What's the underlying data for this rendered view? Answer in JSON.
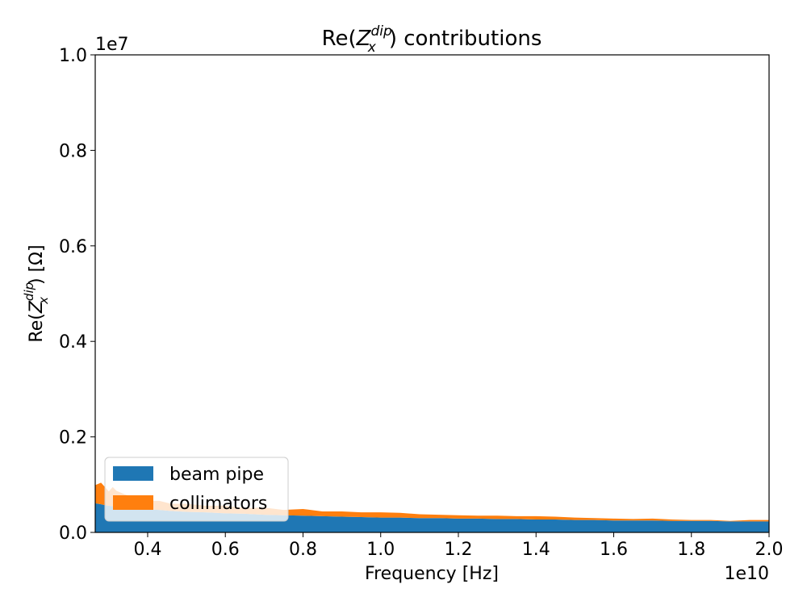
{
  "chart_data": {
    "type": "area",
    "stacked": true,
    "title": "Re(Z_x^dip) contributions",
    "title_parts": {
      "pre": "Re(",
      "var": "Z",
      "sub": "x",
      "sup": "dip",
      "post": ") contributions"
    },
    "xlabel": "Frequency [Hz]",
    "ylabel": "Re(Z_x^dip) [Ω]",
    "ylabel_parts": {
      "pre": "Re(",
      "var": "Z",
      "sub": "x",
      "sup": "dip",
      "post": ") [Ω]"
    },
    "x_offset_label": "1e10",
    "y_offset_label": "1e7",
    "xlim": [
      0.265,
      2.0
    ],
    "ylim": [
      0,
      1.0
    ],
    "x_ticks": [
      0.4,
      0.6,
      0.8,
      1.0,
      1.2,
      1.4,
      1.6,
      1.8,
      2.0
    ],
    "x_tick_labels": [
      "0.4",
      "0.6",
      "0.8",
      "1.0",
      "1.2",
      "1.4",
      "1.6",
      "1.8",
      "2.0"
    ],
    "y_ticks": [
      0.0,
      0.2,
      0.4,
      0.6,
      0.8,
      1.0
    ],
    "y_tick_labels": [
      "0.0",
      "0.2",
      "0.4",
      "0.6",
      "0.8",
      "1.0"
    ],
    "legend_position": "bottom-left",
    "grid": false,
    "x": [
      0.265,
      0.28,
      0.29,
      0.3,
      0.31,
      0.32,
      0.34,
      0.37,
      0.4,
      0.43,
      0.46,
      0.5,
      0.55,
      0.6,
      0.65,
      0.7,
      0.75,
      0.8,
      0.85,
      0.9,
      0.95,
      1.0,
      1.05,
      1.1,
      1.15,
      1.2,
      1.25,
      1.3,
      1.35,
      1.4,
      1.45,
      1.5,
      1.55,
      1.6,
      1.65,
      1.7,
      1.75,
      1.8,
      1.85,
      1.9,
      1.95,
      2.0
    ],
    "series": [
      {
        "name": "beam pipe",
        "color": "#1f77b4",
        "values": [
          0.061,
          0.059,
          0.057,
          0.056,
          0.055,
          0.054,
          0.052,
          0.05,
          0.048,
          0.047,
          0.045,
          0.043,
          0.042,
          0.04,
          0.039,
          0.037,
          0.036,
          0.035,
          0.034,
          0.033,
          0.032,
          0.031,
          0.031,
          0.03,
          0.03,
          0.029,
          0.029,
          0.028,
          0.028,
          0.027,
          0.027,
          0.026,
          0.026,
          0.025,
          0.025,
          0.025,
          0.024,
          0.024,
          0.024,
          0.023,
          0.023,
          0.023
        ]
      },
      {
        "name": "collimators",
        "color": "#ff7f0e",
        "values": [
          0.038,
          0.045,
          0.038,
          0.03,
          0.04,
          0.033,
          0.028,
          0.022,
          0.018,
          0.019,
          0.015,
          0.017,
          0.014,
          0.016,
          0.012,
          0.015,
          0.011,
          0.014,
          0.01,
          0.011,
          0.01,
          0.011,
          0.01,
          0.008,
          0.007,
          0.007,
          0.006,
          0.007,
          0.006,
          0.007,
          0.006,
          0.005,
          0.004,
          0.004,
          0.003,
          0.004,
          0.003,
          0.002,
          0.002,
          0.001,
          0.003,
          0.003
        ]
      }
    ]
  }
}
